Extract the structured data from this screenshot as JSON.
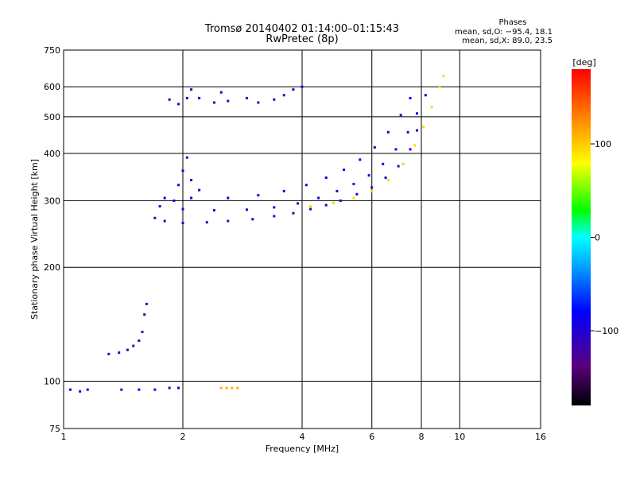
{
  "header": {
    "title": "Tromsø 20140402 01:14:00–01:15:43",
    "subtitle": "RwPretec (8p)",
    "phase_heading": "Phases",
    "phase_o": "mean, sd,O: −95.4, 18.1",
    "phase_x": "mean, sd,X:  89.0, 23.5"
  },
  "colorbar": {
    "label": "[deg]",
    "tick_labels": [
      "100",
      "0",
      "−100"
    ],
    "ticks": [
      100,
      0,
      -100
    ],
    "range": [
      -180,
      180
    ]
  },
  "chart_data": {
    "type": "scatter",
    "title": "Tromsø 20140402 01:14:00–01:15:43",
    "subtitle": "RwPretec (8p)",
    "xlabel": "Frequency [MHz]",
    "ylabel": "Stationary phase Virtual Height [km]",
    "x_scale": "log",
    "y_scale": "log",
    "xlim": [
      1,
      16
    ],
    "ylim": [
      75,
      750
    ],
    "x_ticks": [
      1,
      2,
      4,
      6,
      8,
      10,
      16
    ],
    "x_tick_labels": [
      "1",
      "2",
      "4",
      "6",
      "8",
      "10",
      "16"
    ],
    "y_ticks": [
      75,
      100,
      200,
      300,
      400,
      500,
      600,
      750
    ],
    "y_tick_labels": [
      "75",
      "100",
      "200",
      "300",
      "400",
      "500",
      "600",
      "750"
    ],
    "grid": true,
    "colorbar_label": "[deg]",
    "traces": [
      {
        "name": "",
        "phase": -105,
        "points": [
          [
            1.7,
            270
          ],
          [
            1.8,
            265
          ],
          [
            2.0,
            262
          ],
          [
            2.3,
            263
          ],
          [
            2.6,
            265
          ],
          [
            3.0,
            268
          ],
          [
            3.4,
            273
          ],
          [
            3.8,
            278
          ],
          [
            4.2,
            285
          ],
          [
            4.6,
            292
          ],
          [
            5.0,
            300
          ],
          [
            5.5,
            312
          ],
          [
            6.0,
            325
          ],
          [
            6.5,
            345
          ],
          [
            7.0,
            370
          ],
          [
            7.5,
            410
          ],
          [
            7.8,
            460
          ]
        ]
      },
      {
        "name": "",
        "phase": -95,
        "points": [
          [
            1.75,
            290
          ],
          [
            2.0,
            285
          ],
          [
            2.4,
            283
          ],
          [
            2.9,
            284
          ],
          [
            3.4,
            288
          ],
          [
            3.9,
            295
          ],
          [
            4.4,
            305
          ],
          [
            4.9,
            318
          ],
          [
            5.4,
            332
          ],
          [
            5.9,
            350
          ],
          [
            6.4,
            375
          ],
          [
            6.9,
            410
          ],
          [
            7.4,
            455
          ],
          [
            7.8,
            510
          ],
          [
            8.2,
            570
          ]
        ]
      },
      {
        "name": "",
        "phase": -85,
        "points": [
          [
            1.8,
            305
          ],
          [
            2.1,
            305
          ],
          [
            2.6,
            305
          ],
          [
            3.1,
            310
          ],
          [
            3.6,
            318
          ],
          [
            4.1,
            330
          ],
          [
            4.6,
            345
          ],
          [
            5.1,
            362
          ],
          [
            5.6,
            385
          ],
          [
            6.1,
            415
          ],
          [
            6.6,
            455
          ],
          [
            7.1,
            505
          ],
          [
            7.5,
            560
          ]
        ]
      },
      {
        "name": "",
        "phase": 95,
        "points": [
          [
            4.2,
            290
          ],
          [
            4.8,
            296
          ],
          [
            5.4,
            305
          ],
          [
            6.0,
            318
          ],
          [
            6.6,
            340
          ],
          [
            7.2,
            375
          ],
          [
            7.7,
            420
          ],
          [
            8.1,
            470
          ],
          [
            8.5,
            530
          ],
          [
            8.9,
            600
          ],
          [
            9.1,
            640
          ]
        ]
      },
      {
        "name": "",
        "phase": -100,
        "points": [
          [
            1.85,
            555
          ],
          [
            1.95,
            540
          ],
          [
            2.05,
            560
          ],
          [
            2.1,
            590
          ],
          [
            2.2,
            560
          ],
          [
            2.4,
            545
          ],
          [
            2.5,
            580
          ],
          [
            2.6,
            550
          ],
          [
            2.9,
            560
          ],
          [
            3.1,
            545
          ],
          [
            3.4,
            555
          ],
          [
            3.6,
            570
          ],
          [
            3.8,
            590
          ],
          [
            4.0,
            600
          ]
        ]
      },
      {
        "name": "",
        "phase": -100,
        "points": [
          [
            1.9,
            300
          ],
          [
            1.95,
            330
          ],
          [
            2.0,
            360
          ],
          [
            2.05,
            390
          ],
          [
            2.1,
            340
          ],
          [
            2.2,
            320
          ]
        ]
      },
      {
        "name": "",
        "phase": -110,
        "points": [
          [
            1.3,
            118
          ],
          [
            1.38,
            119
          ],
          [
            1.45,
            121
          ],
          [
            1.5,
            124
          ],
          [
            1.55,
            128
          ],
          [
            1.58,
            135
          ],
          [
            1.6,
            150
          ],
          [
            1.62,
            160
          ]
        ]
      },
      {
        "name": "",
        "phase": -95,
        "points": [
          [
            1.04,
            95
          ],
          [
            1.1,
            94
          ],
          [
            1.15,
            95
          ],
          [
            1.4,
            95
          ],
          [
            1.55,
            95
          ],
          [
            1.7,
            95
          ],
          [
            1.85,
            96
          ],
          [
            1.95,
            96
          ]
        ]
      },
      {
        "name": "",
        "phase": 110,
        "points": [
          [
            2.5,
            96
          ],
          [
            2.58,
            96
          ],
          [
            2.66,
            96
          ],
          [
            2.75,
            96
          ]
        ]
      }
    ]
  }
}
